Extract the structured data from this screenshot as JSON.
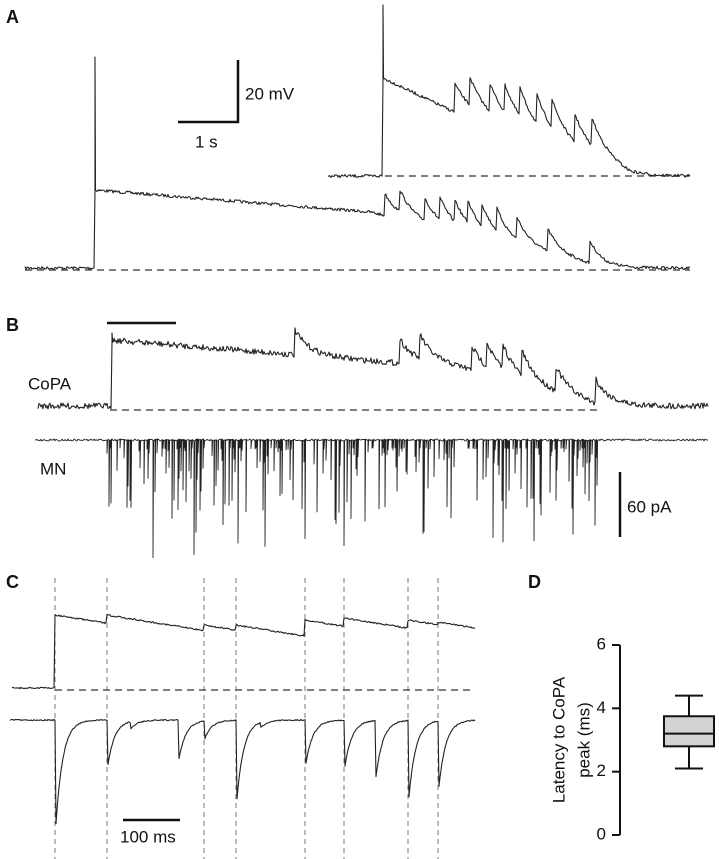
{
  "panels": {
    "a": {
      "label": "A",
      "scale_v": "20 mV",
      "scale_h": "1 s"
    },
    "b": {
      "label": "B",
      "trace_1": "CoPA",
      "trace_2": "MN",
      "scale_v": "60 pA"
    },
    "c": {
      "label": "C",
      "scale_h": "100 ms"
    }
  },
  "chart_data": {
    "type": "box",
    "panel_label": "D",
    "ylabel": [
      "Latency to CoPA",
      "peak (ms)"
    ],
    "boxes": [
      {
        "whislo": 2.1,
        "q1": 2.8,
        "med": 3.2,
        "q3": 3.75,
        "whishi": 4.4
      }
    ],
    "color": "#d3d3d3",
    "ylim": [
      0,
      6
    ],
    "yticks": [
      0,
      2,
      4,
      6
    ]
  }
}
